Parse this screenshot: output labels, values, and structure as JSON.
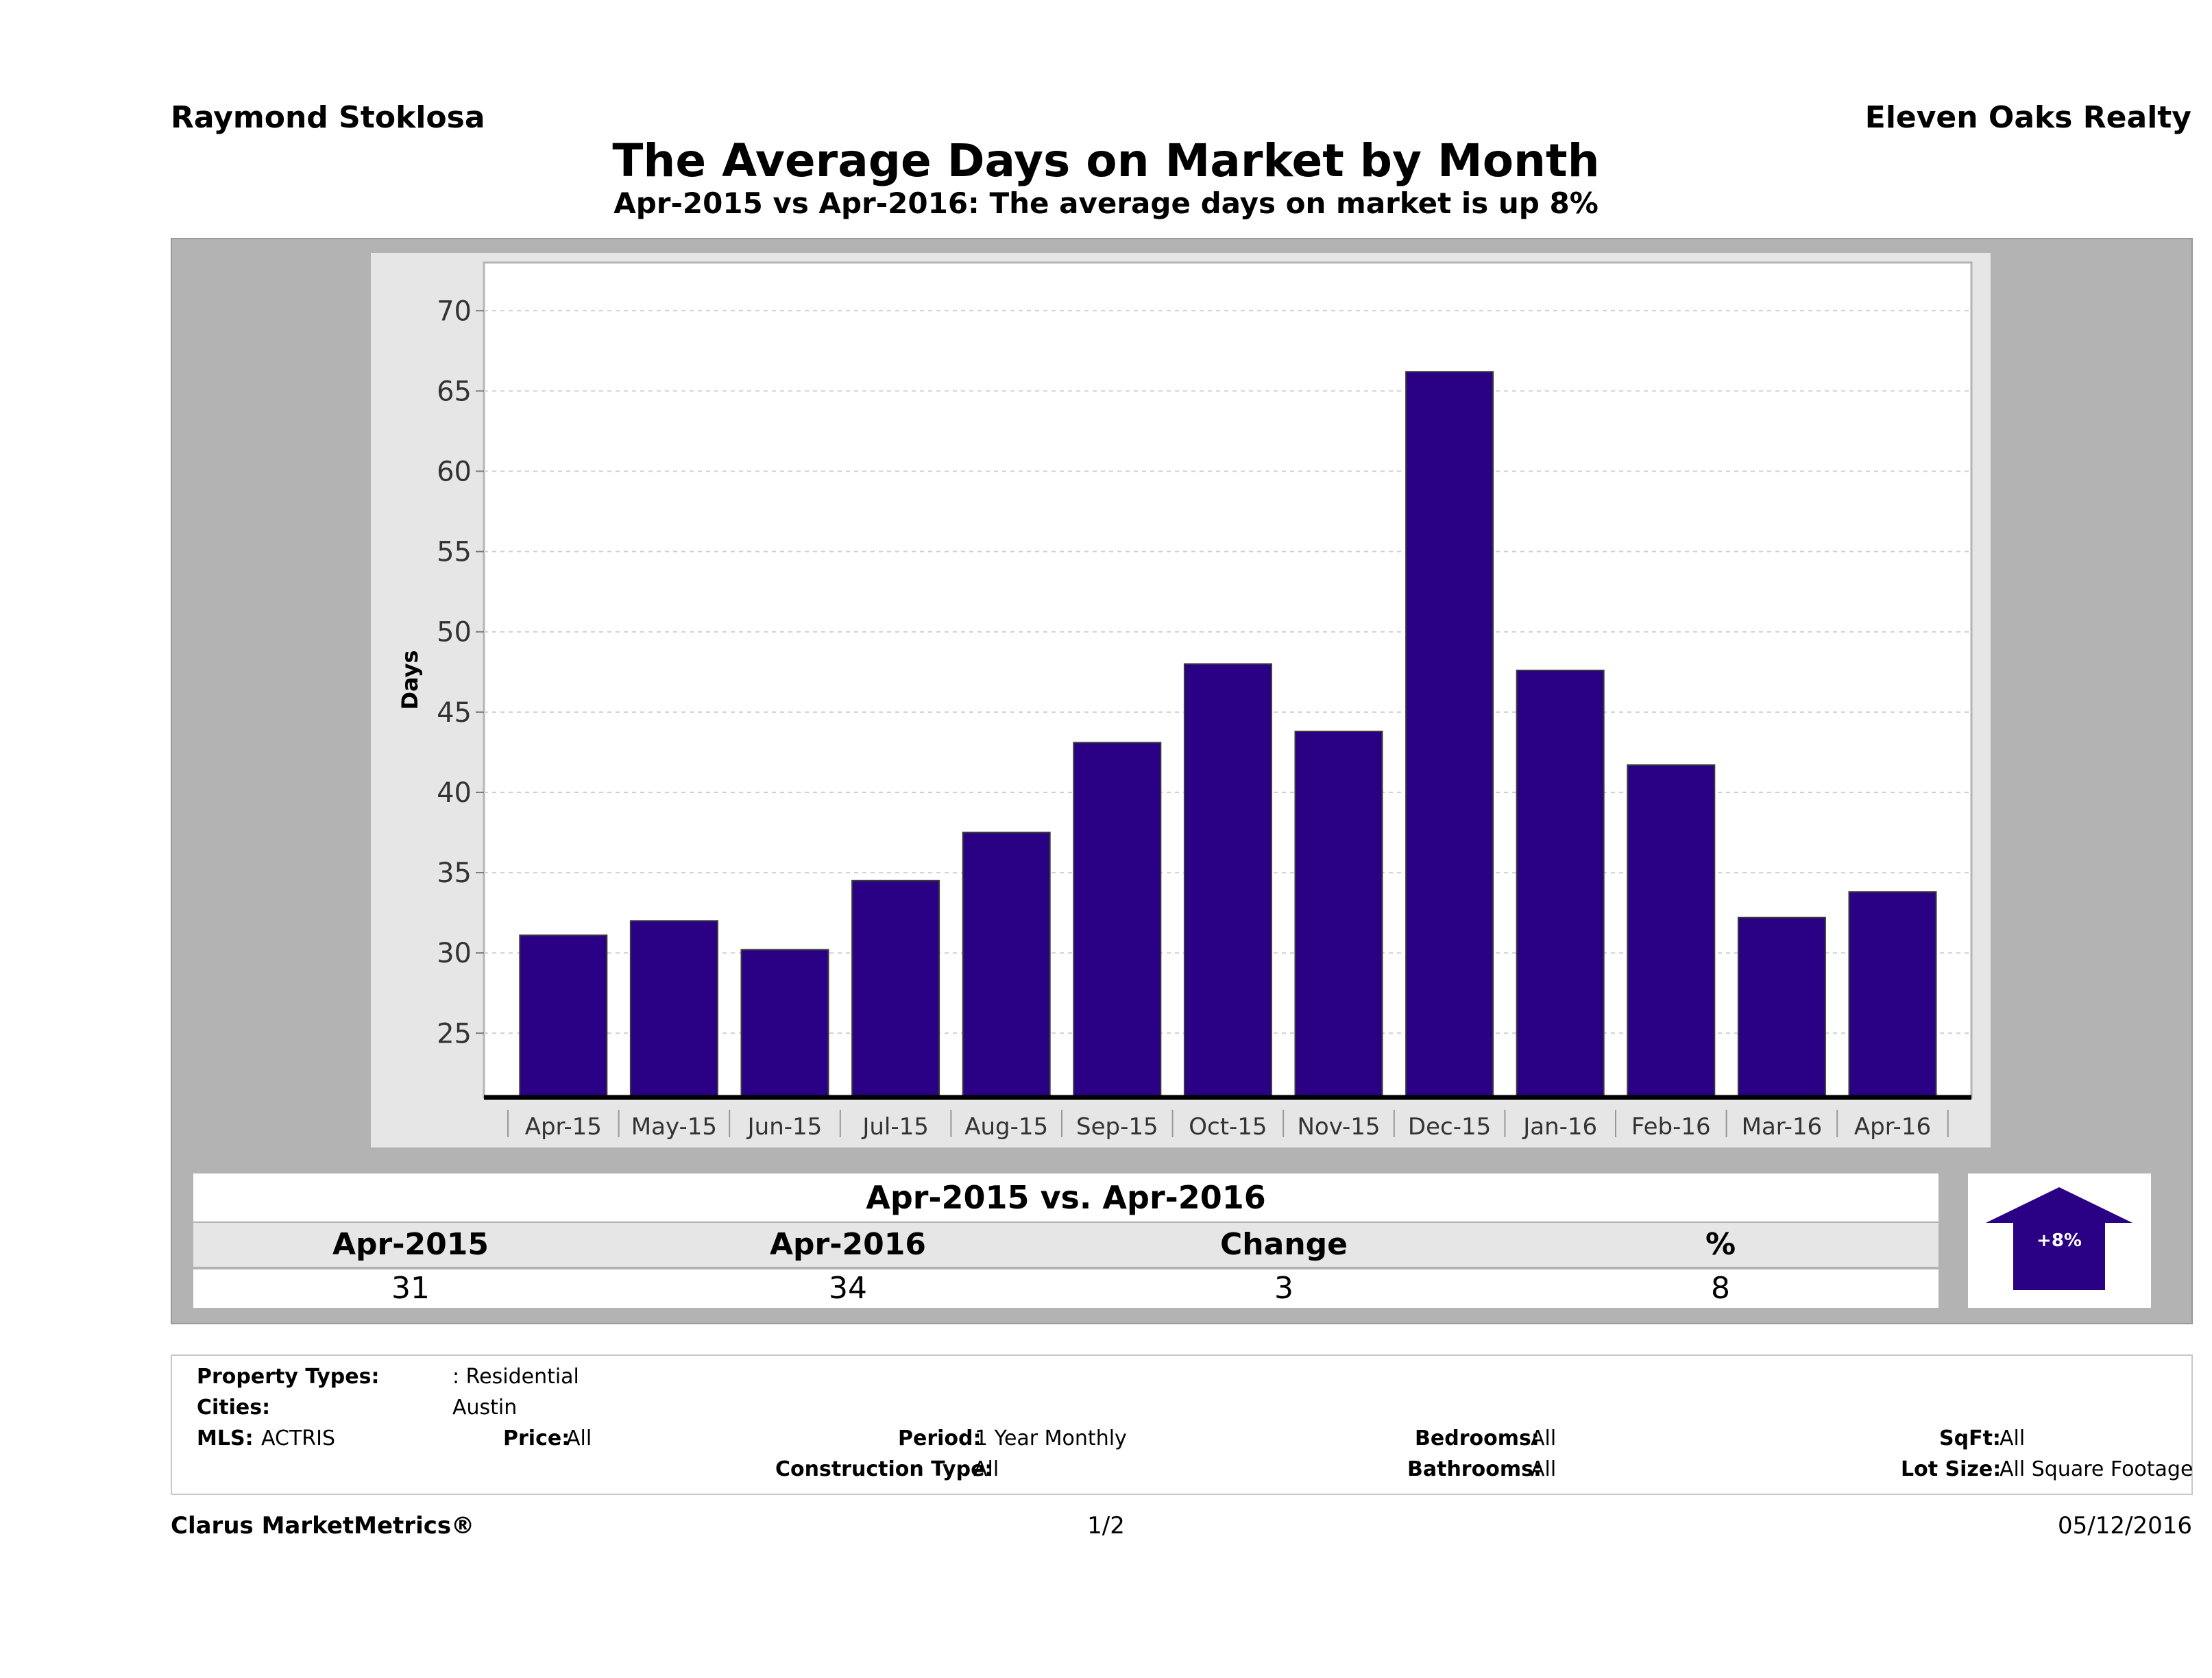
{
  "header": {
    "agent": "Raymond Stoklosa",
    "company": "Eleven Oaks Realty",
    "title": "The Average Days on Market by Month",
    "subtitle": "Apr-2015 vs Apr-2016: The average days on market is up 8%"
  },
  "chart_data": {
    "type": "bar",
    "categories": [
      "Apr-15",
      "May-15",
      "Jun-15",
      "Jul-15",
      "Aug-15",
      "Sep-15",
      "Oct-15",
      "Nov-15",
      "Dec-15",
      "Jan-16",
      "Feb-16",
      "Mar-16",
      "Apr-16"
    ],
    "values": [
      31.1,
      32.0,
      30.2,
      34.5,
      37.5,
      43.1,
      48.0,
      43.8,
      66.2,
      47.6,
      41.7,
      32.2,
      33.8
    ],
    "ylabel": "Days",
    "xlabel": "",
    "ylim": [
      21,
      73
    ],
    "yticks": [
      25,
      30,
      35,
      40,
      45,
      50,
      55,
      60,
      65,
      70
    ],
    "grid": true,
    "colors": {
      "bar": "#2a0084",
      "panel": "#e6e6e6",
      "plot_bg": "#ffffff"
    }
  },
  "comparison": {
    "title": "Apr-2015 vs. Apr-2016",
    "headers": [
      "Apr-2015",
      "Apr-2016",
      "Change",
      "%"
    ],
    "values": [
      "31",
      "34",
      "3",
      "8"
    ],
    "badge": "+8%",
    "badge_direction": "up",
    "badge_color": "#2a0084"
  },
  "criteria": {
    "property_types_label": "Property Types:",
    "property_types_value": ": Residential",
    "cities_label": "Cities:",
    "cities_value": "Austin",
    "mls_label": "MLS:",
    "mls_value": "ACTRIS",
    "price_label": "Price:",
    "price_value": "All",
    "period_label": "Period:",
    "period_value": "1 Year Monthly",
    "construction_label": "Construction Type:",
    "construction_value": "All",
    "bedrooms_label": "Bedrooms:",
    "bedrooms_value": "All",
    "bathrooms_label": "Bathrooms:",
    "bathrooms_value": "All",
    "sqft_label": "SqFt:",
    "sqft_value": "All",
    "lot_label": "Lot Size:",
    "lot_value": "All Square Footage"
  },
  "footer": {
    "brand": "Clarus MarketMetrics®",
    "page": "1/2",
    "date": "05/12/2016"
  }
}
